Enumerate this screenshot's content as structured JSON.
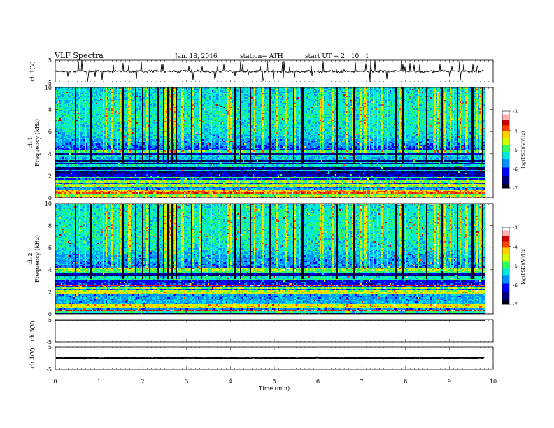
{
  "header": {
    "title": "VLF Spectra",
    "date": "Jan. 18, 2016",
    "station": "station= ATH",
    "start_ut": "start UT = 2 : 10 : 1"
  },
  "colors": {
    "colormap": [
      "#000010",
      "#00007a",
      "#0000ff",
      "#0090ff",
      "#00e8d8",
      "#30ff60",
      "#d0ff00",
      "#ffd000",
      "#ff4000",
      "#d00000",
      "#ffb0b0",
      "#ffffff"
    ]
  },
  "chart_data": [
    {
      "type": "line",
      "name": "ch1-waveform",
      "ylabel": "ch.1(V)",
      "xlim": [
        0,
        10
      ],
      "ylim": [
        -5,
        5
      ],
      "yticks": [
        "5",
        "-5"
      ],
      "baseline_v": 0.0,
      "noise_v": 0.6
    },
    {
      "type": "heatmap",
      "name": "ch1-spectrogram",
      "ylabel_channel": "ch.1",
      "ylabel": "Frequency (kHz)",
      "xlim": [
        0,
        9.8
      ],
      "ylim": [
        0,
        10
      ],
      "yticks": [
        "0",
        "2",
        "4",
        "6",
        "8",
        "10"
      ],
      "colorbar_label": "log(PSD)(V²/Hz)",
      "colorbar_range": [
        -7,
        -3
      ],
      "colorbar_ticks": [
        "-3",
        "-4",
        "-5",
        "-6",
        "-7"
      ],
      "profile_khz": [
        0,
        0.5,
        1,
        1.5,
        2,
        2.5,
        3,
        3.5,
        4,
        4.5,
        5,
        6,
        7,
        8,
        9,
        10
      ],
      "profile_logpsd": [
        -4.3,
        -5.2,
        -5.8,
        -5.9,
        -6.3,
        -6.6,
        -6.5,
        -6.7,
        -6.4,
        -5.9,
        -5.6,
        -5.3,
        -5.2,
        -5.2,
        -5.3,
        -5.4
      ]
    },
    {
      "type": "heatmap",
      "name": "ch2-spectrogram",
      "ylabel_channel": "ch.2",
      "ylabel": "Frequency (kHz)",
      "xlim": [
        0,
        9.8
      ],
      "ylim": [
        0,
        10
      ],
      "yticks": [
        "0",
        "2",
        "4",
        "6",
        "8",
        "10"
      ],
      "colorbar_label": "log(PSD)(V²/Hz)",
      "colorbar_range": [
        -7,
        -3
      ],
      "colorbar_ticks": [
        "-3",
        "-4",
        "-5",
        "-6",
        "-7"
      ],
      "profile_khz": [
        0,
        0.5,
        1,
        1.5,
        2,
        2.5,
        3,
        3.5,
        4,
        4.5,
        5,
        6,
        7,
        8,
        9,
        10
      ],
      "profile_logpsd": [
        -6.8,
        -5.6,
        -5.5,
        -5.6,
        -5.7,
        -6.0,
        -6.2,
        -6.6,
        -5.9,
        -5.7,
        -5.6,
        -5.3,
        -5.2,
        -5.2,
        -5.2,
        -5.3
      ]
    },
    {
      "type": "line",
      "name": "ch3-waveform",
      "ylabel": "ch.3(V)",
      "xlim": [
        0,
        10
      ],
      "ylim": [
        -5,
        5
      ],
      "yticks": [
        "5",
        "-5"
      ],
      "baseline_v": 5.0,
      "noise_v": 0.0
    },
    {
      "type": "line",
      "name": "ch4-waveform",
      "ylabel": "ch.4(V)",
      "xlim": [
        0,
        10
      ],
      "ylim": [
        -5,
        5
      ],
      "yticks": [
        "5",
        "-5"
      ],
      "baseline_v": 0.0,
      "noise_v": 0.25
    }
  ],
  "time_axis": {
    "xlabel": "Time (min)",
    "xlim": [
      0,
      10
    ],
    "ticks": [
      "0",
      "1",
      "2",
      "3",
      "4",
      "5",
      "6",
      "7",
      "8",
      "9",
      "10"
    ]
  }
}
